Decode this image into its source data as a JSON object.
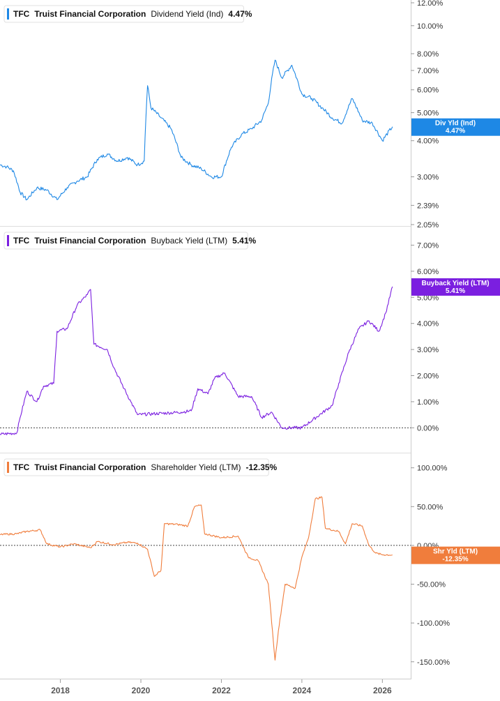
{
  "chart_data": [
    {
      "type": "line",
      "ticker": "TFC",
      "company": "Truist Financial Corporation",
      "metric": "Dividend Yield (Ind)",
      "current_value": "4.47%",
      "badge": {
        "label": "Div Yld (Ind)",
        "value": "4.47%"
      },
      "color": "#1e88e5",
      "scale": "log",
      "ylim": [
        2.05,
        12.0
      ],
      "yticks": [
        {
          "v": 12.0,
          "label": "12.00%"
        },
        {
          "v": 10.0,
          "label": "10.00%"
        },
        {
          "v": 8.0,
          "label": "8.00%"
        },
        {
          "v": 7.0,
          "label": "7.00%"
        },
        {
          "v": 6.0,
          "label": "6.00%"
        },
        {
          "v": 5.0,
          "label": "5.00%"
        },
        {
          "v": 4.0,
          "label": "4.00%"
        },
        {
          "v": 3.0,
          "label": "3.00%"
        },
        {
          "v": 2.39,
          "label": "2.39%"
        },
        {
          "v": 2.05,
          "label": "2.05%"
        }
      ],
      "zero_line": false,
      "noise": 0.03,
      "series": [
        {
          "x": "2016-07",
          "y": 3.3
        },
        {
          "x": "2016-09",
          "y": 3.25
        },
        {
          "x": "2016-11",
          "y": 3.15
        },
        {
          "x": "2017-01",
          "y": 2.65
        },
        {
          "x": "2017-03",
          "y": 2.5
        },
        {
          "x": "2017-06",
          "y": 2.75
        },
        {
          "x": "2017-09",
          "y": 2.7
        },
        {
          "x": "2017-12",
          "y": 2.5
        },
        {
          "x": "2018-03",
          "y": 2.75
        },
        {
          "x": "2018-06",
          "y": 2.9
        },
        {
          "x": "2018-09",
          "y": 3.0
        },
        {
          "x": "2018-12",
          "y": 3.45
        },
        {
          "x": "2019-03",
          "y": 3.6
        },
        {
          "x": "2019-06",
          "y": 3.4
        },
        {
          "x": "2019-09",
          "y": 3.5
        },
        {
          "x": "2019-12",
          "y": 3.3
        },
        {
          "x": "2020-02",
          "y": 3.4
        },
        {
          "x": "2020-03",
          "y": 6.2
        },
        {
          "x": "2020-04",
          "y": 5.2
        },
        {
          "x": "2020-07",
          "y": 4.8
        },
        {
          "x": "2020-10",
          "y": 4.4
        },
        {
          "x": "2021-01",
          "y": 3.5
        },
        {
          "x": "2021-04",
          "y": 3.3
        },
        {
          "x": "2021-07",
          "y": 3.2
        },
        {
          "x": "2021-10",
          "y": 3.0
        },
        {
          "x": "2022-01",
          "y": 3.0
        },
        {
          "x": "2022-04",
          "y": 3.8
        },
        {
          "x": "2022-07",
          "y": 4.2
        },
        {
          "x": "2022-10",
          "y": 4.4
        },
        {
          "x": "2023-01",
          "y": 4.7
        },
        {
          "x": "2023-03",
          "y": 5.4
        },
        {
          "x": "2023-05",
          "y": 7.6
        },
        {
          "x": "2023-07",
          "y": 6.6
        },
        {
          "x": "2023-10",
          "y": 7.3
        },
        {
          "x": "2024-01",
          "y": 5.8
        },
        {
          "x": "2024-04",
          "y": 5.6
        },
        {
          "x": "2024-07",
          "y": 5.2
        },
        {
          "x": "2024-10",
          "y": 4.8
        },
        {
          "x": "2025-01",
          "y": 4.6
        },
        {
          "x": "2025-04",
          "y": 5.6
        },
        {
          "x": "2025-07",
          "y": 4.7
        },
        {
          "x": "2025-10",
          "y": 4.6
        },
        {
          "x": "2026-01",
          "y": 4.0
        },
        {
          "x": "2026-04",
          "y": 4.47
        }
      ]
    },
    {
      "type": "line",
      "ticker": "TFC",
      "company": "Truist Financial Corporation",
      "metric": "Buyback Yield (LTM)",
      "current_value": "5.41%",
      "badge": {
        "label": "Buyback Yield (LTM)",
        "value": "5.41%"
      },
      "color": "#7b1fe0",
      "scale": "linear",
      "ylim": [
        -0.9,
        7.6
      ],
      "yticks": [
        {
          "v": 7.0,
          "label": "7.00%"
        },
        {
          "v": 6.0,
          "label": "6.00%"
        },
        {
          "v": 5.0,
          "label": "5.00%"
        },
        {
          "v": 4.0,
          "label": "4.00%"
        },
        {
          "v": 3.0,
          "label": "3.00%"
        },
        {
          "v": 2.0,
          "label": "2.00%"
        },
        {
          "v": 1.0,
          "label": "1.00%"
        },
        {
          "v": 0.0,
          "label": "0.00%"
        }
      ],
      "zero_line": true,
      "noise": 0.06,
      "series": [
        {
          "x": "2016-07",
          "y": -0.25
        },
        {
          "x": "2016-12",
          "y": -0.2
        },
        {
          "x": "2017-01",
          "y": 0.4
        },
        {
          "x": "2017-03",
          "y": 1.4
        },
        {
          "x": "2017-06",
          "y": 1.0
        },
        {
          "x": "2017-08",
          "y": 1.6
        },
        {
          "x": "2017-11",
          "y": 1.7
        },
        {
          "x": "2017-12",
          "y": 3.7
        },
        {
          "x": "2018-03",
          "y": 3.8
        },
        {
          "x": "2018-06",
          "y": 4.7
        },
        {
          "x": "2018-09",
          "y": 5.1
        },
        {
          "x": "2018-10",
          "y": 5.3
        },
        {
          "x": "2018-11",
          "y": 3.2
        },
        {
          "x": "2019-03",
          "y": 3.0
        },
        {
          "x": "2019-05",
          "y": 2.3
        },
        {
          "x": "2019-08",
          "y": 1.5
        },
        {
          "x": "2019-10",
          "y": 1.0
        },
        {
          "x": "2019-12",
          "y": 0.5
        },
        {
          "x": "2021-01",
          "y": 0.6
        },
        {
          "x": "2021-04",
          "y": 0.65
        },
        {
          "x": "2021-06",
          "y": 1.5
        },
        {
          "x": "2021-09",
          "y": 1.3
        },
        {
          "x": "2021-11",
          "y": 1.9
        },
        {
          "x": "2022-02",
          "y": 2.1
        },
        {
          "x": "2022-06",
          "y": 1.2
        },
        {
          "x": "2022-10",
          "y": 1.2
        },
        {
          "x": "2023-01",
          "y": 0.4
        },
        {
          "x": "2023-04",
          "y": 0.6
        },
        {
          "x": "2023-07",
          "y": 0.0
        },
        {
          "x": "2024-01",
          "y": 0.0
        },
        {
          "x": "2024-10",
          "y": 0.85
        },
        {
          "x": "2024-12",
          "y": 1.7
        },
        {
          "x": "2025-03",
          "y": 2.9
        },
        {
          "x": "2025-06",
          "y": 3.8
        },
        {
          "x": "2025-09",
          "y": 4.1
        },
        {
          "x": "2025-12",
          "y": 3.7
        },
        {
          "x": "2026-02",
          "y": 4.4
        },
        {
          "x": "2026-04",
          "y": 5.41
        }
      ]
    },
    {
      "type": "line",
      "ticker": "TFC",
      "company": "Truist Financial Corporation",
      "metric": "Shareholder Yield (LTM)",
      "current_value": "-12.35%",
      "badge": {
        "label": "Shr Yld (LTM)",
        "value": "-12.35%"
      },
      "color": "#f07d3c",
      "scale": "linear",
      "ylim": [
        -170,
        115
      ],
      "yticks": [
        {
          "v": 100,
          "label": "100.00%"
        },
        {
          "v": 50,
          "label": "50.00%"
        },
        {
          "v": 0,
          "label": "0.00%"
        },
        {
          "v": -50,
          "label": "-50.00%"
        },
        {
          "v": -100,
          "label": "-100.00%"
        },
        {
          "v": -150,
          "label": "-150.00%"
        }
      ],
      "zero_line": true,
      "noise": 1.2,
      "series": [
        {
          "x": "2016-07",
          "y": 14
        },
        {
          "x": "2016-12",
          "y": 15
        },
        {
          "x": "2017-03",
          "y": 18
        },
        {
          "x": "2017-07",
          "y": 20
        },
        {
          "x": "2017-09",
          "y": 2
        },
        {
          "x": "2018-01",
          "y": -2
        },
        {
          "x": "2018-05",
          "y": 2
        },
        {
          "x": "2018-10",
          "y": -3
        },
        {
          "x": "2018-12",
          "y": 5
        },
        {
          "x": "2019-05",
          "y": 1
        },
        {
          "x": "2019-09",
          "y": 4
        },
        {
          "x": "2019-12",
          "y": 3
        },
        {
          "x": "2020-03",
          "y": -5
        },
        {
          "x": "2020-05",
          "y": -40
        },
        {
          "x": "2020-07",
          "y": -32
        },
        {
          "x": "2020-08",
          "y": 28
        },
        {
          "x": "2020-12",
          "y": 27
        },
        {
          "x": "2021-03",
          "y": 25
        },
        {
          "x": "2021-05",
          "y": 50
        },
        {
          "x": "2021-07",
          "y": 52
        },
        {
          "x": "2021-08",
          "y": 15
        },
        {
          "x": "2022-01",
          "y": 10
        },
        {
          "x": "2022-06",
          "y": 12
        },
        {
          "x": "2022-09",
          "y": -15
        },
        {
          "x": "2022-12",
          "y": -20
        },
        {
          "x": "2023-03",
          "y": -50
        },
        {
          "x": "2023-05",
          "y": -148
        },
        {
          "x": "2023-06",
          "y": -110
        },
        {
          "x": "2023-08",
          "y": -50
        },
        {
          "x": "2023-11",
          "y": -55
        },
        {
          "x": "2024-01",
          "y": -15
        },
        {
          "x": "2024-03",
          "y": 10
        },
        {
          "x": "2024-05",
          "y": 60
        },
        {
          "x": "2024-07",
          "y": 62
        },
        {
          "x": "2024-08",
          "y": 22
        },
        {
          "x": "2024-12",
          "y": 18
        },
        {
          "x": "2025-02",
          "y": 2
        },
        {
          "x": "2025-04",
          "y": 28
        },
        {
          "x": "2025-07",
          "y": 25
        },
        {
          "x": "2025-09",
          "y": 0
        },
        {
          "x": "2025-11",
          "y": -10
        },
        {
          "x": "2026-01",
          "y": -12
        },
        {
          "x": "2026-04",
          "y": -12.35
        }
      ]
    }
  ],
  "x_axis": {
    "ticks": [
      {
        "x": "2018-01",
        "label": "2018"
      },
      {
        "x": "2020-01",
        "label": "2020"
      },
      {
        "x": "2022-01",
        "label": "2022"
      },
      {
        "x": "2024-01",
        "label": "2024"
      },
      {
        "x": "2026-01",
        "label": "2026"
      }
    ],
    "range": [
      "2016-07",
      "2026-08"
    ]
  }
}
